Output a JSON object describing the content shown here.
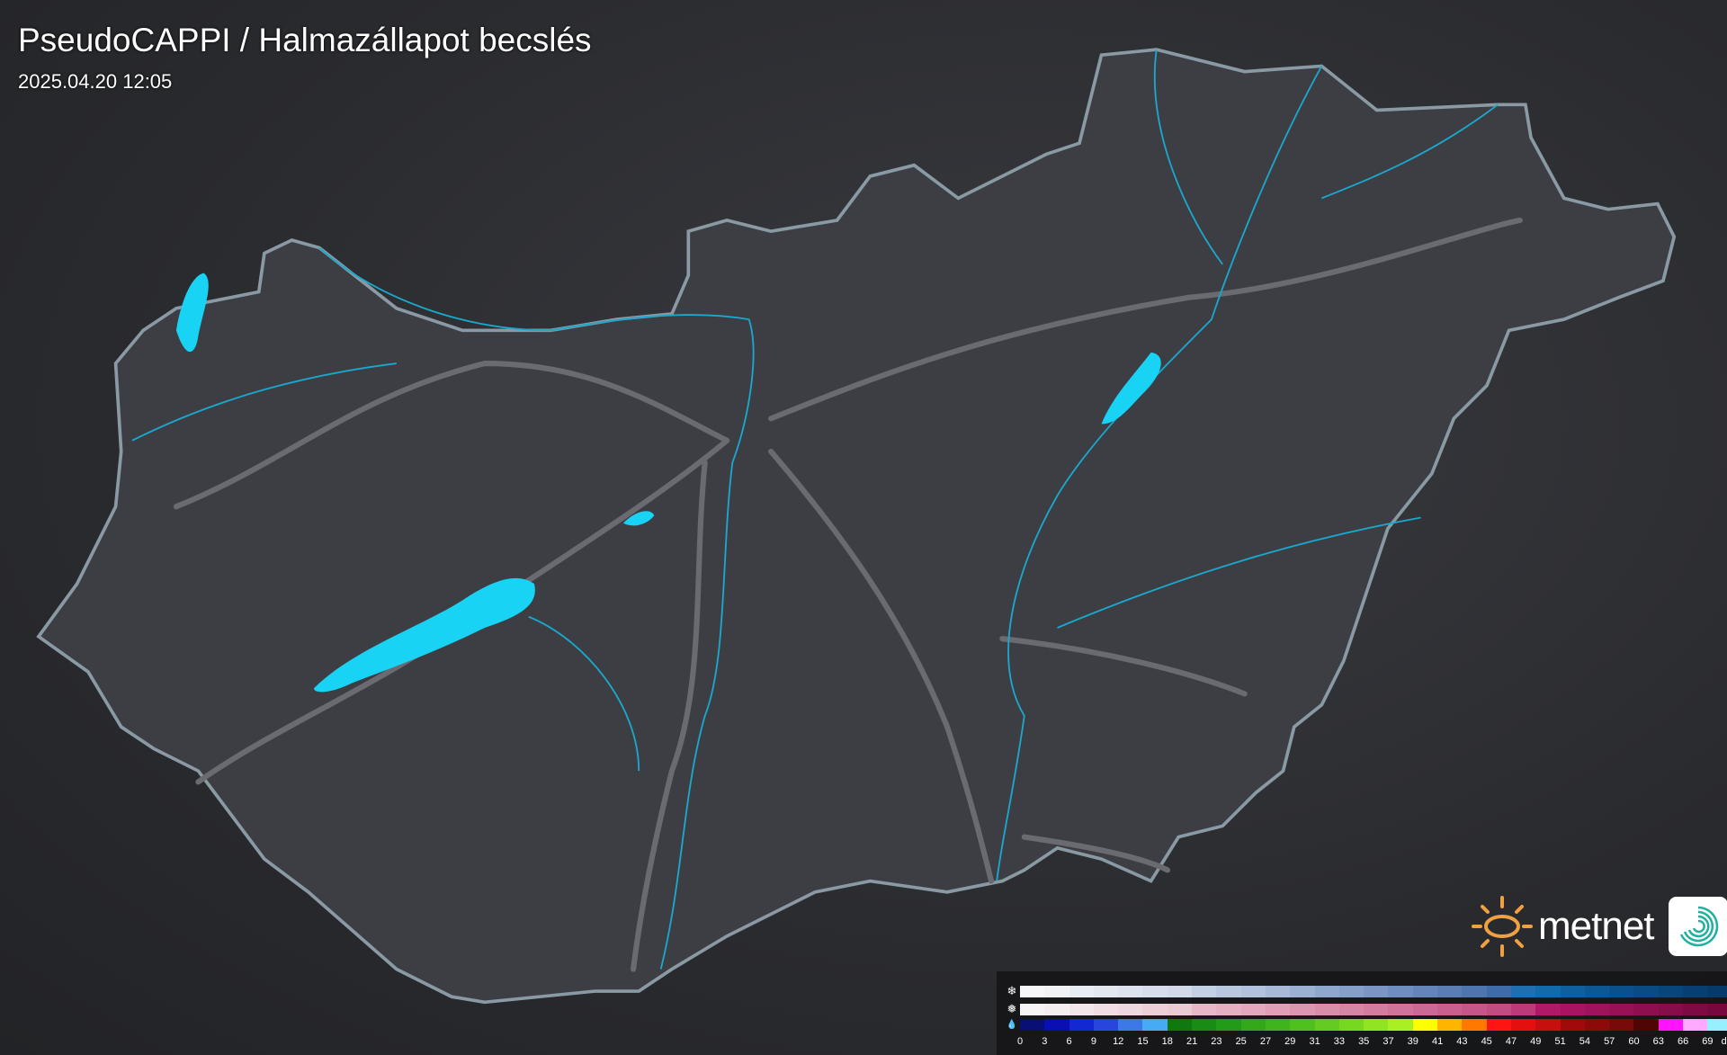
{
  "header": {
    "title": "PseudoCAPPI  / Halmazállapot becslés",
    "timestamp": "2025.04.20 12:05"
  },
  "logo": {
    "text": "metnet",
    "sun_color": "#f0a040",
    "app_icon_color": "#20b0a0"
  },
  "map": {
    "country_fill": "#3d3e44",
    "border_color": "#8a9aa4",
    "water_color": "#19d3f5",
    "river_color": "#1aa8cc",
    "road_color": "#6a6b70"
  },
  "legend": {
    "unit": "dBZ",
    "labels": [
      "0",
      "3",
      "6",
      "9",
      "12",
      "15",
      "18",
      "21",
      "23",
      "25",
      "27",
      "29",
      "31",
      "33",
      "35",
      "37",
      "39",
      "41",
      "43",
      "45",
      "47",
      "49",
      "51",
      "54",
      "57",
      "60",
      "63",
      "66",
      "69"
    ],
    "rows": [
      {
        "type": "snow",
        "icon": "snowflake-icon",
        "glyph": "❄",
        "colors": [
          "#f7f7f9",
          "#f0f2f6",
          "#e8ecf3",
          "#e2e7f0",
          "#dce3ee",
          "#d6deeb",
          "#d2dae9",
          "#c4d0e3",
          "#bac8df",
          "#b2c2dc",
          "#a7b9d6",
          "#9cb0d1",
          "#90a7cc",
          "#869fc8",
          "#7b96c3",
          "#6f8dbe",
          "#6485b9",
          "#5a7db4",
          "#4f75ae",
          "#3f6ca8",
          "#1f6eb0",
          "#136aaa",
          "#0f5f9f",
          "#0c5895",
          "#0a518b",
          "#094b82",
          "#08457a",
          "#073f72",
          "#063a6a"
        ]
      },
      {
        "type": "mixed",
        "icon": "sleet-icon",
        "glyph": "❅",
        "colors": [
          "#f6f4f5",
          "#f4eef0",
          "#f2e6ea",
          "#f0dee4",
          "#eed7de",
          "#ecd0d8",
          "#eacbd4",
          "#e6b8c8",
          "#e4b0c2",
          "#e2a8bd",
          "#e09fb7",
          "#dd96b1",
          "#da8dab",
          "#d784a5",
          "#d47ba0",
          "#d0729a",
          "#cc6894",
          "#c85f8e",
          "#c45688",
          "#c04c82",
          "#bc3a7a",
          "#b01868",
          "#a81462",
          "#a0125c",
          "#981056",
          "#8e0e50",
          "#860c4a",
          "#7e0a44",
          "#76083e"
        ]
      },
      {
        "type": "rain",
        "icon": "raindrop-icon",
        "glyph": "💧",
        "colors": [
          "#0a0f78",
          "#0a0fb4",
          "#1428d2",
          "#2846dc",
          "#3c78e6",
          "#46aaf5",
          "#0f780f",
          "#188c14",
          "#229c18",
          "#32a81a",
          "#40b41c",
          "#50c01e",
          "#64cc20",
          "#78d820",
          "#90e422",
          "#a8f024",
          "#ffff00",
          "#ffb400",
          "#ff7800",
          "#ff1414",
          "#e60f0f",
          "#c80f0f",
          "#a00a0a",
          "#8c0a0a",
          "#780a0a",
          "#500505",
          "#ff14ff",
          "#ffaaff",
          "#96f0ff"
        ]
      }
    ]
  }
}
